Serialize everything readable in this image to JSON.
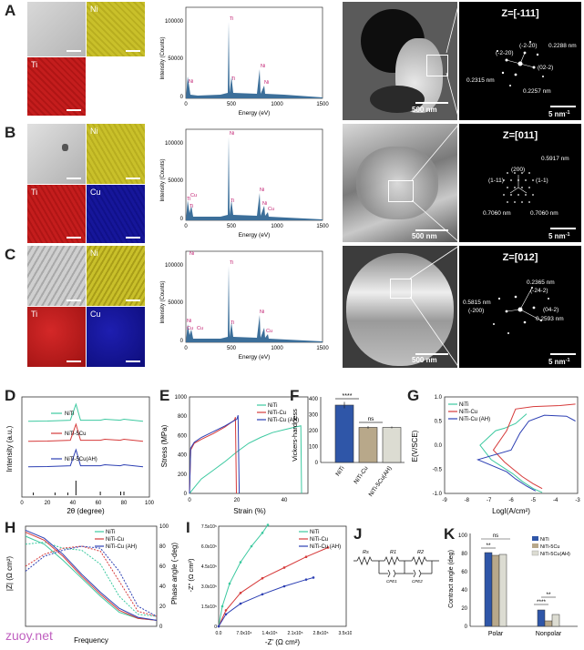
{
  "panels": {
    "A": "A",
    "B": "B",
    "C": "C",
    "D": "D",
    "E": "E",
    "F": "F",
    "G": "G",
    "H": "H",
    "I": "I",
    "J": "J",
    "K": "K"
  },
  "colors": {
    "ni_map": "#c9c02a",
    "ti_map": "#c41d1d",
    "cu_map": "#16169a",
    "sem": "#bdbdbd",
    "niti": "#3cc9a0",
    "cu": "#d63a3a",
    "ah": "#2c3fb3",
    "bar_blue": "#2f56a8",
    "bar_tan": "#b8a88a",
    "bar_light": "#dcdcd2",
    "spec_fill": "#3c6f9a"
  },
  "eds": {
    "row_a": {
      "maps": {
        "ni": "Ni",
        "ti": "Ti"
      }
    },
    "row_b": {
      "maps": {
        "ni": "Ni",
        "ti": "Ti",
        "cu": "Cu"
      }
    },
    "row_c": {
      "maps": {
        "ni": "Ni",
        "ti": "Ti",
        "cu": "Cu"
      }
    }
  },
  "spectra": {
    "xlabel": "Energy (eV)",
    "ylabel": "Intensity (Counts)",
    "xticks": [
      "0",
      "500",
      "1000",
      "1500"
    ],
    "yticks": [
      "0",
      "50000",
      "100000"
    ],
    "spec_a": {
      "labels": [
        "Ni",
        "Ti",
        "Ti",
        "Ni",
        "Ni"
      ]
    },
    "spec_b": {
      "labels": [
        "Ni",
        "Ti",
        "Cu",
        "Ti",
        "Ti",
        "Ni",
        "Ni",
        "Cu"
      ]
    },
    "spec_c": {
      "labels": [
        "Ni",
        "Ti",
        "Ni",
        "Cu",
        "Cu",
        "Ti",
        "Ni",
        "Cu"
      ]
    }
  },
  "tem": {
    "tem_a": {
      "scale": "500 nm"
    },
    "tem_b": {
      "scale": "500 nm"
    },
    "tem_c": {
      "scale": "500 nm"
    }
  },
  "saed": {
    "saed_a": {
      "zone": "Z=[-111]",
      "scale": "5 nm",
      "scale_sup": "-1",
      "labels": [
        "(-2-20)",
        "(-2-20)",
        "(02-2)",
        "0.2288 nm",
        "0.2315 nm",
        "0.2257 nm"
      ]
    },
    "saed_b": {
      "zone": "Z=[011]",
      "scale": "5 nm",
      "scale_sup": "-1",
      "labels": [
        "(200)",
        "(1-11)",
        "(1-1)",
        "0.5917 nm",
        "0.7060 nm",
        "0.7060 nm"
      ]
    },
    "saed_c": {
      "zone": "Z=[012]",
      "scale": "5 nm",
      "scale_sup": "-1",
      "labels": [
        "0.2365 nm",
        "(-24-2)",
        "0.5815 nm",
        "(-200)",
        "(04-2)",
        "0.2593 nm"
      ]
    }
  },
  "chart_data": [
    {
      "id": "D",
      "type": "line",
      "xlabel": "2θ (degree)",
      "ylabel": "Intensity (a.u.)",
      "xlim": [
        0,
        100
      ],
      "xticks": [
        0,
        20,
        40,
        60,
        80,
        100
      ],
      "series": [
        {
          "name": "NiTi",
          "x": [
            5,
            20,
            38,
            42.4,
            46,
            61.5,
            65,
            77,
            80,
            95
          ],
          "y": [
            0.15,
            0.16,
            0.2,
            1,
            0.2,
            0.2,
            0.25,
            0.2,
            0.25,
            0.15
          ]
        },
        {
          "name": "NiTi-5Cu",
          "x": [
            5,
            20,
            38,
            42.4,
            46,
            61.5,
            65,
            77,
            80,
            95
          ],
          "y": [
            0.15,
            0.16,
            0.2,
            1,
            0.2,
            0.2,
            0.25,
            0.2,
            0.25,
            0.15
          ]
        },
        {
          "name": "NiTi-5Cu(AH)",
          "x": [
            5,
            20,
            38,
            42.4,
            46,
            61.5,
            65,
            77,
            80,
            95
          ],
          "y": [
            0.15,
            0.16,
            0.2,
            1,
            0.2,
            0.2,
            0.25,
            0.2,
            0.25,
            0.15
          ]
        }
      ]
    },
    {
      "id": "E",
      "type": "line",
      "xlabel": "Strain (%)",
      "ylabel": "Stress (MPa)",
      "xlim": [
        0,
        50
      ],
      "ylim": [
        0,
        1000
      ],
      "xticks": [
        0,
        20,
        40
      ],
      "yticks": [
        0,
        200,
        400,
        600,
        800,
        1000
      ],
      "series": [
        {
          "name": "NiTi",
          "x": [
            0,
            2,
            5,
            10,
            15,
            20,
            25,
            30,
            35,
            40,
            45,
            47,
            47.3
          ],
          "y": [
            0,
            60,
            150,
            240,
            330,
            430,
            520,
            580,
            630,
            660,
            690,
            700,
            0
          ]
        },
        {
          "name": "NiTi-Cu",
          "x": [
            0,
            0.5,
            2,
            5,
            10,
            15,
            19,
            19.4,
            19.8
          ],
          "y": [
            0,
            450,
            520,
            560,
            620,
            690,
            760,
            790,
            0
          ]
        },
        {
          "name": "NiTi-Cu (AH)",
          "x": [
            0,
            0.5,
            2,
            5,
            10,
            15,
            20,
            20.5,
            21
          ],
          "y": [
            0,
            470,
            530,
            580,
            640,
            700,
            770,
            810,
            0
          ]
        }
      ]
    },
    {
      "id": "F",
      "type": "bar",
      "ylabel": "Vickers-hardness",
      "ylim": [
        0,
        400
      ],
      "yticks": [
        0,
        100,
        200,
        300,
        400
      ],
      "categories": [
        "NiTi",
        "NiTi-Cu",
        "NiTi-5Cu(AH)"
      ],
      "values": [
        360,
        220,
        220
      ],
      "errors": [
        20,
        8,
        6
      ],
      "sig": [
        "****",
        "ns"
      ]
    },
    {
      "id": "G",
      "type": "line",
      "xlabel": "LogI(A/cm²)",
      "ylabel": "E(V/SCE)",
      "xlim": [
        -9,
        -3
      ],
      "ylim": [
        -1.0,
        1.0
      ],
      "xticks": [
        -9,
        -8,
        -7,
        -6,
        -5,
        -4,
        -3
      ],
      "yticks": [
        -1.0,
        -0.5,
        0.0,
        0.5,
        1.0
      ],
      "series": [
        {
          "name": "NiTi",
          "x": [
            -5.3,
            -5.8,
            -6.3,
            -6.7,
            -7.4,
            -6.9,
            -6.4,
            -5.9,
            -5.5,
            -5.0,
            -4.6
          ],
          "y": [
            0.65,
            0.45,
            0.35,
            0.3,
            0.0,
            -0.3,
            -0.45,
            -0.6,
            -0.75,
            -0.9,
            -0.98
          ]
        },
        {
          "name": "NiTi-Cu",
          "x": [
            -3.1,
            -3.8,
            -5.0,
            -5.8,
            -6.2,
            -6.8,
            -6.3,
            -5.9,
            -5.5,
            -5.0,
            -4.6
          ],
          "y": [
            0.85,
            0.82,
            0.8,
            0.75,
            0.3,
            -0.1,
            -0.35,
            -0.5,
            -0.65,
            -0.8,
            -0.9
          ]
        },
        {
          "name": "NiTi-Cu (AH)",
          "x": [
            -3.1,
            -3.5,
            -4.5,
            -5.2,
            -5.6,
            -6.0,
            -7.5,
            -6.2,
            -5.8,
            -5.3,
            -4.9
          ],
          "y": [
            0.5,
            0.6,
            0.62,
            0.5,
            0.25,
            -0.1,
            -0.3,
            -0.55,
            -0.7,
            -0.85,
            -0.95
          ]
        }
      ]
    },
    {
      "id": "H",
      "type": "line",
      "xlabel": "Frequency",
      "ylabel": "|Z| (Ω cm²)",
      "ylabel2": "Phase angle (-deg)",
      "ylim2": [
        0,
        100
      ],
      "yticks2": [
        0,
        20,
        40,
        60,
        80,
        100
      ],
      "series": [
        {
          "name": "NiTi",
          "x": [
            0.01,
            0.1,
            1,
            10,
            100,
            1000,
            10000,
            100000
          ],
          "y": [
            5.5,
            5.1,
            4.3,
            3.4,
            2.5,
            1.7,
            1.4,
            1.3
          ],
          "y_phase": [
            82,
            84,
            78,
            76,
            62,
            30,
            12,
            10
          ]
        },
        {
          "name": "NiTi-Cu",
          "x": [
            0.01,
            0.1,
            1,
            10,
            100,
            1000,
            10000,
            100000
          ],
          "y": [
            5.7,
            5.3,
            4.5,
            3.5,
            2.6,
            1.8,
            1.4,
            1.3
          ],
          "y_phase": [
            60,
            72,
            78,
            80,
            75,
            45,
            15,
            10
          ]
        },
        {
          "name": "NiTi-Cu (AH)",
          "x": [
            0.01,
            0.1,
            1,
            10,
            100,
            1000,
            10000,
            100000
          ],
          "y": [
            5.8,
            5.4,
            4.6,
            3.6,
            2.7,
            1.9,
            1.45,
            1.3
          ],
          "y_phase": [
            55,
            70,
            76,
            80,
            78,
            55,
            20,
            10
          ]
        }
      ]
    },
    {
      "id": "I",
      "type": "line",
      "xlabel": "-Z' (Ω cm²)",
      "ylabel": "-Z\" (Ω cm²)",
      "xlim": [
        0,
        350000
      ],
      "ylim": [
        0,
        750000
      ],
      "xticks": [
        "0.0",
        "7.0x10⁴",
        "1.4x10⁵",
        "2.1x10⁵",
        "2.8x10⁵",
        "3.5x10⁵"
      ],
      "yticks": [
        "0",
        "1.5x10⁵",
        "3.0x10⁵",
        "4.5x10⁵",
        "6.0x10⁵",
        "7.5x10⁵"
      ],
      "series": [
        {
          "name": "NiTi",
          "x": [
            0,
            10000,
            30000,
            60000,
            90000,
            120000,
            135000
          ],
          "y": [
            0,
            150000,
            320000,
            480000,
            600000,
            700000,
            760000
          ]
        },
        {
          "name": "NiTi-Cu",
          "x": [
            0,
            20000,
            60000,
            120000,
            180000,
            240000,
            300000
          ],
          "y": [
            0,
            120000,
            250000,
            360000,
            440000,
            520000,
            590000
          ]
        },
        {
          "name": "NiTi-Cu (AH)",
          "x": [
            0,
            20000,
            60000,
            120000,
            180000,
            240000,
            260000
          ],
          "y": [
            0,
            90000,
            170000,
            240000,
            300000,
            350000,
            365000
          ]
        }
      ]
    },
    {
      "id": "J",
      "type": "diagram",
      "labels": [
        "Rs",
        "R1",
        "CPE1",
        "R2",
        "CPE2"
      ]
    },
    {
      "id": "K",
      "type": "bar",
      "ylabel": "Contract angle (deg)",
      "ylim": [
        0,
        100
      ],
      "yticks": [
        0,
        20,
        40,
        60,
        80,
        100
      ],
      "categories": [
        "Polar",
        "Nonpolar"
      ],
      "series": [
        {
          "name": "NiTi",
          "values": [
            81,
            18
          ]
        },
        {
          "name": "NiTi-5Cu",
          "values": [
            78,
            6
          ]
        },
        {
          "name": "NiTi-5Cu(AH)",
          "values": [
            79,
            13
          ]
        }
      ],
      "sig": [
        "**",
        "ns",
        "****",
        "**"
      ]
    }
  ],
  "watermark": "zuoy.net"
}
